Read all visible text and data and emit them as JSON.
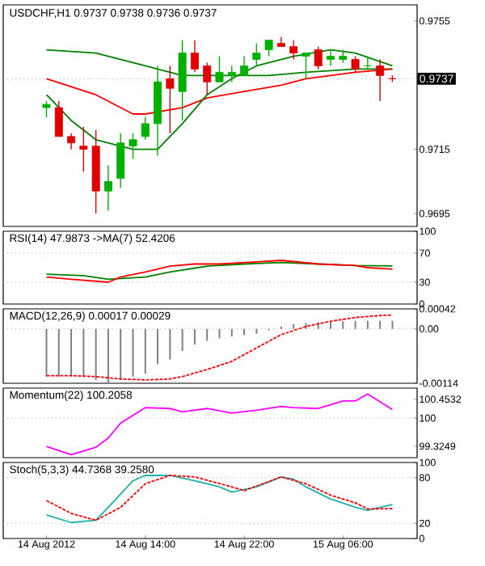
{
  "chart_data": [
    {
      "type": "candlestick",
      "title": "USDCHF,H1  0.9737 0.9738 0.9736 0.9737",
      "xlim": [
        "2012-08-14T02:30",
        "2012-08-15T12:00"
      ],
      "ylim": [
        0.9691,
        0.976
      ],
      "yticks": [
        0.9755,
        0.9715,
        0.9695
      ],
      "tick_labels": "y",
      "ref_lines": [
        {
          "axis": "y",
          "value": 0.9737,
          "label": "0.9737",
          "color": "#a0a0a0",
          "line_style": "dotted"
        }
      ],
      "series": [
        {
          "type": "line",
          "color": "#008000",
          "x": [
            "2012-08-14T06:00",
            "2012-08-14T10:00",
            "2012-08-14T14:00",
            "2012-08-14T17:00",
            "2012-08-14T20:00",
            "2012-08-15T00:00",
            "2012-08-15T03:00",
            "2012-08-15T07:00",
            "2012-08-15T10:00"
          ],
          "values": [
            0.9746,
            0.9745,
            0.9741,
            0.9738,
            0.9738,
            0.9738,
            0.9739,
            0.974,
            0.974
          ]
        },
        {
          "type": "line",
          "color": "#ff0000",
          "x": [
            "2012-08-14T06:00",
            "2012-08-14T10:00",
            "2012-08-14T13:00",
            "2012-08-14T14:00",
            "2012-08-14T17:00",
            "2012-08-14T19:00",
            "2012-08-14T22:00",
            "2012-08-15T01:00",
            "2012-08-15T03:00",
            "2012-08-15T07:00",
            "2012-08-15T10:00"
          ],
          "values": [
            0.9737,
            0.9732,
            0.9726,
            0.9726,
            0.9728,
            0.9731,
            0.9733,
            0.9735,
            0.9737,
            0.9739,
            0.974
          ]
        },
        {
          "type": "line",
          "color": "#008000",
          "x": [
            "2012-08-14T06:00",
            "2012-08-14T08:00",
            "2012-08-14T10:00",
            "2012-08-14T13:00",
            "2012-08-14T15:00",
            "2012-08-14T17:00",
            "2012-08-14T19:00",
            "2012-08-14T21:00",
            "2012-08-14T23:00",
            "2012-08-15T02:00",
            "2012-08-15T05:00",
            "2012-08-15T07:00",
            "2012-08-15T10:00"
          ],
          "values": [
            0.9732,
            0.9724,
            0.9718,
            0.9715,
            0.9715,
            0.9723,
            0.9732,
            0.9737,
            0.9741,
            0.9744,
            0.9746,
            0.9745,
            0.9741
          ]
        },
        {
          "x": [
            "2012-08-14T06:00",
            "2012-08-14T07:00",
            "2012-08-14T08:00",
            "2012-08-14T09:00",
            "2012-08-14T10:00",
            "2012-08-14T11:00",
            "2012-08-14T12:00",
            "2012-08-14T13:00",
            "2012-08-14T14:00",
            "2012-08-14T15:00",
            "2012-08-14T16:00",
            "2012-08-14T17:00",
            "2012-08-14T18:00",
            "2012-08-14T19:00",
            "2012-08-14T20:00",
            "2012-08-14T21:00",
            "2012-08-14T22:00",
            "2012-08-14T23:00",
            "2012-08-15T00:00",
            "2012-08-15T01:00",
            "2012-08-15T02:00",
            "2012-08-15T03:00",
            "2012-08-15T04:00",
            "2012-08-15T05:00",
            "2012-08-15T06:00",
            "2012-08-15T07:00",
            "2012-08-15T08:00",
            "2012-08-15T09:00",
            "2012-08-15T10:00"
          ],
          "ohlc": [
            [
              0.9728,
              0.973,
              0.9725,
              0.9729
            ],
            [
              0.9728,
              0.973,
              0.9719,
              0.9719
            ],
            [
              0.9719,
              0.972,
              0.9715,
              0.9717
            ],
            [
              0.9716,
              0.9722,
              0.9708,
              0.9715
            ],
            [
              0.9716,
              0.9721,
              0.9695,
              0.9702
            ],
            [
              0.9702,
              0.971,
              0.9696,
              0.9705
            ],
            [
              0.9706,
              0.972,
              0.9703,
              0.9717
            ],
            [
              0.9716,
              0.972,
              0.9712,
              0.9718
            ],
            [
              0.9719,
              0.9725,
              0.9718,
              0.9723
            ],
            [
              0.9723,
              0.9741,
              0.9713,
              0.9736
            ],
            [
              0.9737,
              0.9741,
              0.972,
              0.9734
            ],
            [
              0.9733,
              0.9749,
              0.9724,
              0.9745
            ],
            [
              0.9745,
              0.9749,
              0.9739,
              0.974
            ],
            [
              0.9741,
              0.9742,
              0.9732,
              0.9736
            ],
            [
              0.9736,
              0.9744,
              0.9736,
              0.9739
            ],
            [
              0.9738,
              0.9741,
              0.9736,
              0.9739
            ],
            [
              0.9738,
              0.9744,
              0.9738,
              0.9741
            ],
            [
              0.9743,
              0.9748,
              0.9741,
              0.9745
            ],
            [
              0.9746,
              0.9749,
              0.9744,
              0.9749
            ],
            [
              0.9748,
              0.975,
              0.9747,
              0.9747
            ],
            [
              0.9747,
              0.9749,
              0.9743,
              0.9745
            ],
            [
              0.9744,
              0.9745,
              0.9737,
              0.9745
            ],
            [
              0.9746,
              0.9747,
              0.974,
              0.9741
            ],
            [
              0.9743,
              0.9746,
              0.9741,
              0.9744
            ],
            [
              0.9743,
              0.9746,
              0.9742,
              0.9744
            ],
            [
              0.9743,
              0.9744,
              0.9739,
              0.974
            ],
            [
              0.9741,
              0.9744,
              0.974,
              0.9741
            ],
            [
              0.9741,
              0.9743,
              0.973,
              0.9738
            ],
            [
              0.9737,
              0.9738,
              0.9736,
              0.9737
            ]
          ],
          "colors": [
            "#00b000",
            "#e00000",
            "#e00000",
            "#e00000",
            "#e00000",
            "#00b000",
            "#00b000",
            "#00b000",
            "#00b000",
            "#00b000",
            "#e00000",
            "#00b000",
            "#e00000",
            "#e00000",
            "#00b000",
            "#00b000",
            "#00b000",
            "#00b000",
            "#00b000",
            "#e00000",
            "#e00000",
            "#00b000",
            "#e00000",
            "#00b000",
            "#00b000",
            "#e00000",
            "#00b000",
            "#e00000",
            "#e00000"
          ]
        }
      ]
    },
    {
      "type": "line",
      "title": "RSI(14) 47.9873  ->MA(7) 52.4206",
      "xlim": [
        "2012-08-14T02:30",
        "2012-08-15T12:00"
      ],
      "ylim": [
        0,
        100
      ],
      "yticks": [
        0,
        30,
        70,
        100
      ],
      "tick_labels": "y",
      "ref_lines": [
        {
          "axis": "y",
          "value": 30,
          "color": "#a0a0a0",
          "line_style": "dotted"
        },
        {
          "axis": "y",
          "value": 70,
          "color": "#a0a0a0",
          "line_style": "dotted"
        }
      ],
      "series": [
        {
          "color": "#008000",
          "x": [
            "2012-08-14T06:00",
            "2012-08-14T09:00",
            "2012-08-14T11:00",
            "2012-08-14T14:00",
            "2012-08-14T16:00",
            "2012-08-14T19:00",
            "2012-08-14T22:00",
            "2012-08-15T01:00",
            "2012-08-15T04:00",
            "2012-08-15T07:00",
            "2012-08-15T10:00"
          ],
          "values": [
            41,
            39,
            34,
            37,
            44,
            52,
            55,
            57,
            55,
            53,
            52.4206
          ]
        },
        {
          "color": "#ff0000",
          "x": [
            "2012-08-14T06:00",
            "2012-08-14T08:00",
            "2012-08-14T11:00",
            "2012-08-14T12:00",
            "2012-08-14T14:00",
            "2012-08-14T16:00",
            "2012-08-14T18:00",
            "2012-08-14T20:00",
            "2012-08-14T23:00",
            "2012-08-15T01:00",
            "2012-08-15T04:00",
            "2012-08-15T07:00",
            "2012-08-15T08:00",
            "2012-08-15T10:00"
          ],
          "values": [
            37,
            34,
            30,
            37,
            44,
            52,
            55,
            55,
            58,
            60,
            55,
            53,
            50,
            47.9873
          ]
        }
      ]
    },
    {
      "type": "bar",
      "title": "MACD(12,26,9) 0.00017 0.00029",
      "xlim": [
        "2012-08-14T02:30",
        "2012-08-15T12:00"
      ],
      "ylim": [
        -0.00114,
        0.00042
      ],
      "yticks": [
        0.00042,
        {
          "value": 0,
          "label": "0.00"
        },
        -0.00114
      ],
      "tick_labels": "y",
      "ref_lines": [
        {
          "axis": "y",
          "value": 0,
          "color": "#a0a0a0",
          "line_style": "dotted"
        }
      ],
      "series": [
        {
          "color": "#808080",
          "x": [
            "2012-08-14T06:00",
            "2012-08-14T07:00",
            "2012-08-14T08:00",
            "2012-08-14T09:00",
            "2012-08-14T10:00",
            "2012-08-14T11:00",
            "2012-08-14T12:00",
            "2012-08-14T13:00",
            "2012-08-14T14:00",
            "2012-08-14T15:00",
            "2012-08-14T16:00",
            "2012-08-14T17:00",
            "2012-08-14T18:00",
            "2012-08-14T19:00",
            "2012-08-14T20:00",
            "2012-08-14T21:00",
            "2012-08-14T22:00",
            "2012-08-14T23:00",
            "2012-08-15T00:00",
            "2012-08-15T01:00",
            "2012-08-15T02:00",
            "2012-08-15T03:00",
            "2012-08-15T04:00",
            "2012-08-15T05:00",
            "2012-08-15T06:00",
            "2012-08-15T07:00",
            "2012-08-15T08:00",
            "2012-08-15T09:00",
            "2012-08-15T10:00"
          ],
          "values": [
            -0.001,
            -0.001,
            -0.001,
            -0.001,
            -0.00107,
            -0.00113,
            -0.00107,
            -0.001,
            -0.00094,
            -0.00074,
            -0.00064,
            -0.00046,
            -0.00033,
            -0.00025,
            -0.0002,
            -0.00016,
            -0.00013,
            -0.0001,
            -3e-05,
            5e-05,
            0.0001,
            0.00012,
            0.00014,
            0.00015,
            0.00016,
            0.00017,
            0.00017,
            0.00017,
            0.00017
          ]
        },
        {
          "type": "line",
          "color": "#ff0000",
          "line_style": "dashed",
          "x": [
            "2012-08-14T06:00",
            "2012-08-14T08:00",
            "2012-08-14T10:00",
            "2012-08-14T12:00",
            "2012-08-14T14:00",
            "2012-08-14T16:00",
            "2012-08-14T17:00",
            "2012-08-14T19:00",
            "2012-08-14T21:00",
            "2012-08-14T23:00",
            "2012-08-15T01:00",
            "2012-08-15T03:00",
            "2012-08-15T05:00",
            "2012-08-15T07:00",
            "2012-08-15T09:00",
            "2012-08-15T10:00"
          ],
          "values": [
            -0.00098,
            -0.00098,
            -0.001,
            -0.00105,
            -0.00107,
            -0.00105,
            -0.001,
            -0.00085,
            -0.00068,
            -0.0004,
            -0.00012,
            5e-05,
            0.00016,
            0.00024,
            0.00028,
            0.00029
          ]
        }
      ]
    },
    {
      "type": "line",
      "title": "Momentum(22) 100.2058",
      "xlim": [
        "2012-08-14T02:30",
        "2012-08-15T12:00"
      ],
      "ylim": [
        99.05,
        100.72
      ],
      "yticks": [
        99.3249,
        100,
        100.4532
      ],
      "tick_labels": "y",
      "ref_lines": [
        {
          "axis": "y",
          "value": 100,
          "color": "#a0a0a0",
          "line_style": "dotted"
        }
      ],
      "series": [
        {
          "color": "#ff00ff",
          "x": [
            "2012-08-14T06:00",
            "2012-08-14T08:00",
            "2012-08-14T10:00",
            "2012-08-14T11:00",
            "2012-08-14T12:00",
            "2012-08-14T14:00",
            "2012-08-14T16:00",
            "2012-08-14T17:00",
            "2012-08-14T19:00",
            "2012-08-14T21:00",
            "2012-08-14T23:00",
            "2012-08-15T01:00",
            "2012-08-15T02:00",
            "2012-08-15T04:00",
            "2012-08-15T06:00",
            "2012-08-15T07:00",
            "2012-08-15T08:00",
            "2012-08-15T10:00"
          ],
          "values": [
            99.32,
            99.12,
            99.3,
            99.52,
            99.88,
            100.25,
            100.23,
            100.15,
            100.23,
            100.12,
            100.19,
            100.28,
            100.25,
            100.23,
            100.41,
            100.41,
            100.58,
            100.2058
          ]
        }
      ]
    },
    {
      "type": "line",
      "title": "Stoch(5,3,3) 44.7368 39.2580",
      "xlim": [
        "2012-08-14T02:30",
        "2012-08-15T12:00"
      ],
      "ylim": [
        0,
        100
      ],
      "yticks": [
        0,
        20,
        80,
        100
      ],
      "xticks": [
        {
          "value": "2012-08-14T06:00",
          "label": "14 Aug 2012"
        },
        {
          "value": "2012-08-14T14:00",
          "label": "14 Aug 14:00"
        },
        {
          "value": "2012-08-14T22:00",
          "label": "14 Aug 22:00"
        },
        {
          "value": "2012-08-15T06:00",
          "label": "15 Aug 06:00"
        }
      ],
      "ref_lines": [
        {
          "axis": "y",
          "value": 20,
          "color": "#a0a0a0",
          "line_style": "dotted"
        },
        {
          "axis": "y",
          "value": 80,
          "color": "#a0a0a0",
          "line_style": "dotted"
        }
      ],
      "series": [
        {
          "color": "#20b2aa",
          "x": [
            "2012-08-14T06:00",
            "2012-08-14T08:00",
            "2012-08-14T10:00",
            "2012-08-14T11:00",
            "2012-08-14T13:00",
            "2012-08-14T14:00",
            "2012-08-14T16:00",
            "2012-08-14T18:00",
            "2012-08-14T20:00",
            "2012-08-14T21:00",
            "2012-08-14T23:00",
            "2012-08-15T01:00",
            "2012-08-15T02:00",
            "2012-08-15T03:00",
            "2012-08-15T05:00",
            "2012-08-15T07:00",
            "2012-08-15T08:00",
            "2012-08-15T10:00"
          ],
          "values": [
            31,
            21,
            24,
            41,
            76,
            83,
            83,
            76,
            68,
            61,
            68,
            81,
            78,
            68,
            52,
            41,
            37,
            44.7368
          ]
        },
        {
          "color": "#ff0000",
          "line_style": "dashed",
          "x": [
            "2012-08-14T06:00",
            "2012-08-14T08:00",
            "2012-08-14T10:00",
            "2012-08-14T12:00",
            "2012-08-14T14:00",
            "2012-08-14T16:00",
            "2012-08-14T18:00",
            "2012-08-14T21:00",
            "2012-08-14T22:00",
            "2012-08-15T01:00",
            "2012-08-15T03:00",
            "2012-08-15T05:00",
            "2012-08-15T07:00",
            "2012-08-15T08:00",
            "2012-08-15T10:00"
          ],
          "values": [
            50,
            33,
            24,
            41,
            72,
            83,
            81,
            68,
            63,
            81,
            72,
            57,
            47,
            39,
            39.258
          ]
        }
      ]
    }
  ]
}
